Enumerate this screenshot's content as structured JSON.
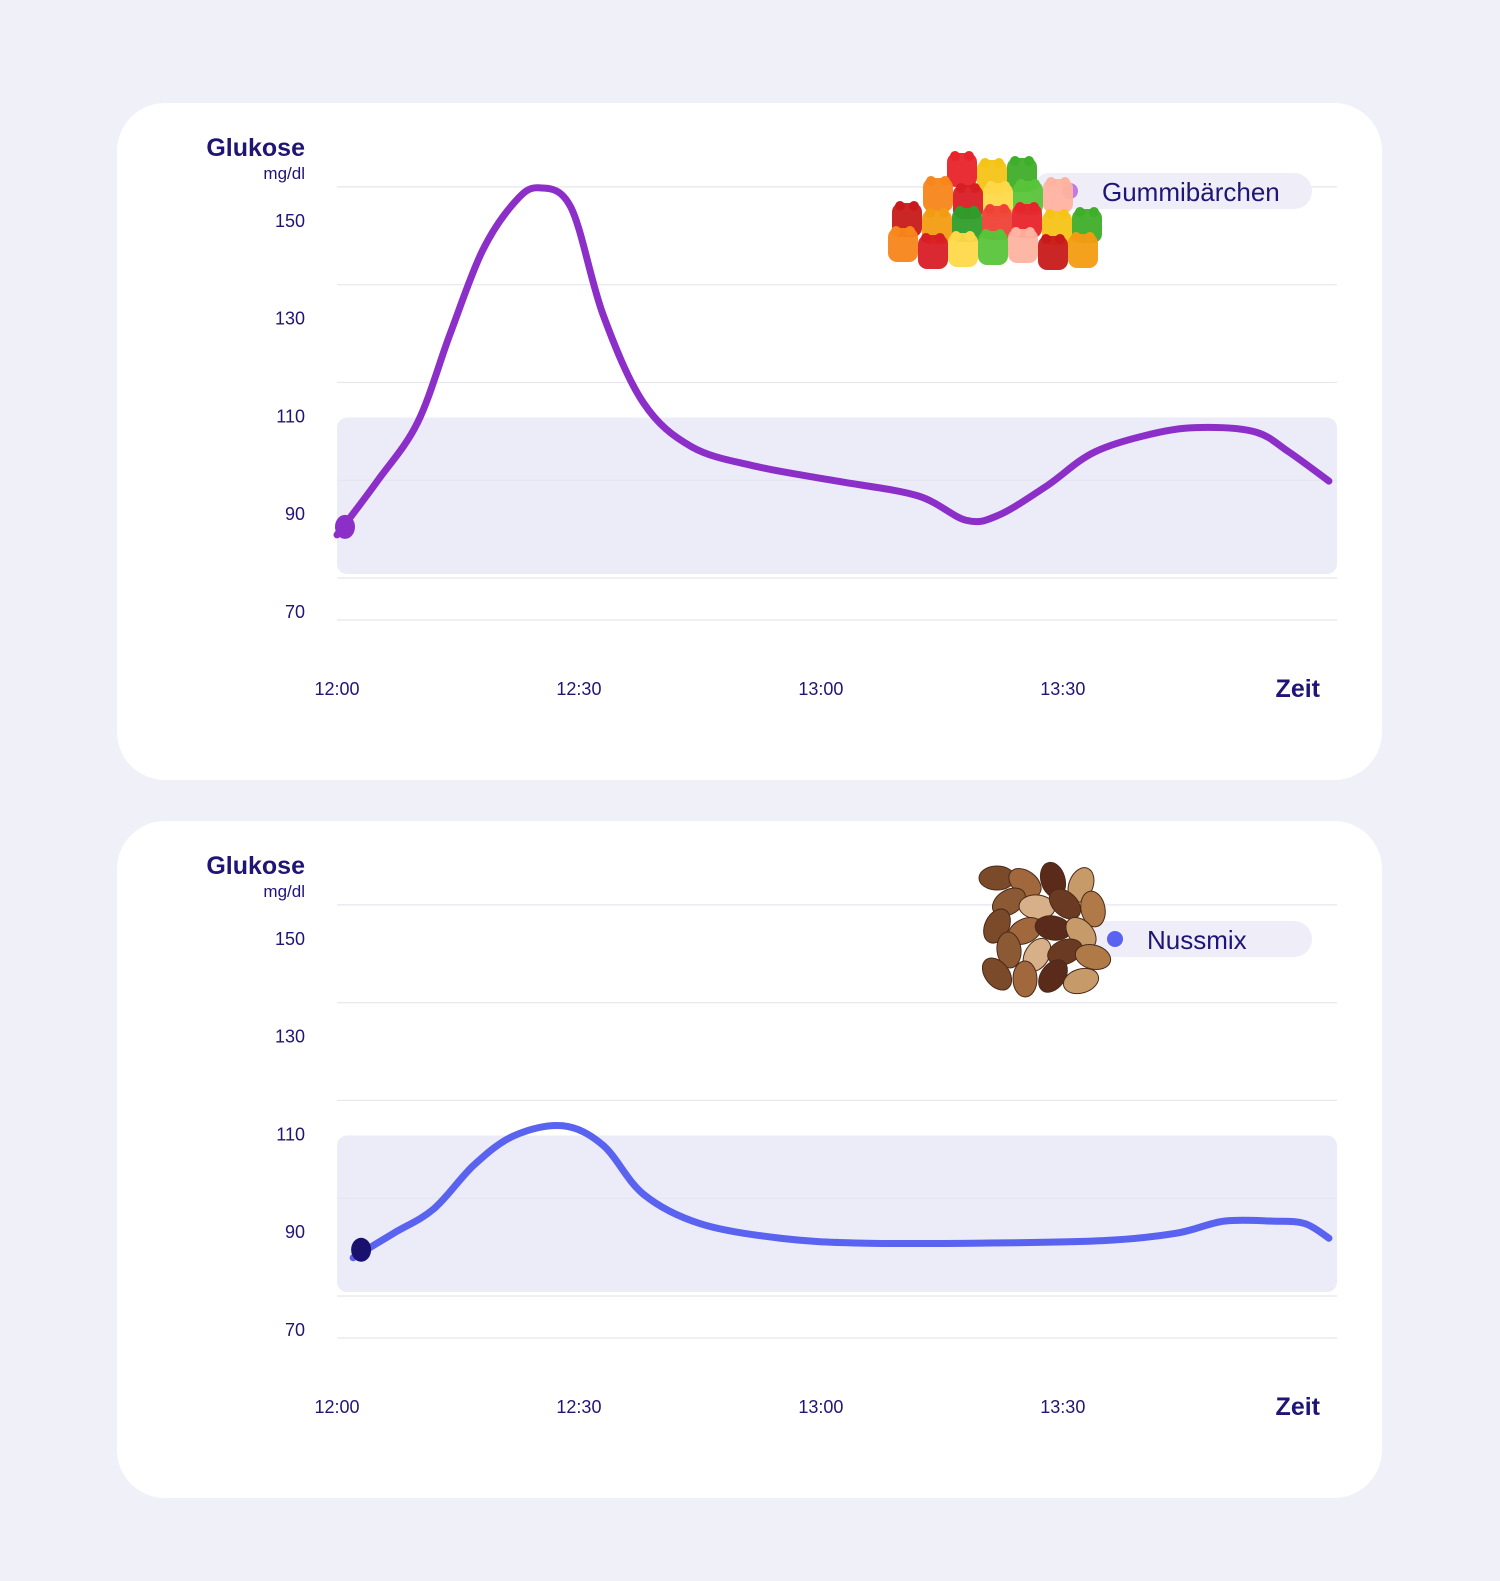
{
  "chart_data": [
    {
      "type": "line",
      "ylabel": "Glukose",
      "yunit": "mg/dl",
      "xlabel": "Zeit",
      "yticks": [
        150,
        130,
        110,
        90,
        70
      ],
      "ylim": [
        70,
        160
      ],
      "normal_range": [
        79,
        111
      ],
      "xticks": [
        "12:00",
        "12:30",
        "13:00",
        "13:30"
      ],
      "x_minutes": [
        0,
        30,
        60,
        90
      ],
      "xlim": [
        0,
        124
      ],
      "legend": "Gummibärchen",
      "legend_icon": "gummy-bears-icon",
      "color": "#8c2fc9",
      "marker_color": "#8c2fc9",
      "legend_dot_color": "#c07ae6",
      "series": [
        {
          "x": 0,
          "y": 87
        },
        {
          "x": 5,
          "y": 98
        },
        {
          "x": 10,
          "y": 110
        },
        {
          "x": 14,
          "y": 128
        },
        {
          "x": 18,
          "y": 145
        },
        {
          "x": 22,
          "y": 155
        },
        {
          "x": 25,
          "y": 158
        },
        {
          "x": 29,
          "y": 154
        },
        {
          "x": 33,
          "y": 132
        },
        {
          "x": 38,
          "y": 114
        },
        {
          "x": 44,
          "y": 105
        },
        {
          "x": 52,
          "y": 101
        },
        {
          "x": 62,
          "y": 98
        },
        {
          "x": 72,
          "y": 95
        },
        {
          "x": 78,
          "y": 90
        },
        {
          "x": 82,
          "y": 91
        },
        {
          "x": 88,
          "y": 97
        },
        {
          "x": 94,
          "y": 104
        },
        {
          "x": 102,
          "y": 108
        },
        {
          "x": 108,
          "y": 109
        },
        {
          "x": 114,
          "y": 108
        },
        {
          "x": 118,
          "y": 104
        },
        {
          "x": 123,
          "y": 98
        }
      ]
    },
    {
      "type": "line",
      "ylabel": "Glukose",
      "yunit": "mg/dl",
      "xlabel": "Zeit",
      "yticks": [
        150,
        130,
        110,
        90,
        70
      ],
      "ylim": [
        70,
        160
      ],
      "normal_range": [
        79,
        111
      ],
      "xticks": [
        "12:00",
        "12:30",
        "13:00",
        "13:30"
      ],
      "x_minutes": [
        0,
        30,
        60,
        90
      ],
      "xlim": [
        0,
        124
      ],
      "legend": "Nussmix",
      "legend_icon": "nut-mix-icon",
      "color": "#5a62f0",
      "marker_color": "#1a116e",
      "legend_dot_color": "#5a62f0",
      "series": [
        {
          "x": 2,
          "y": 86
        },
        {
          "x": 7,
          "y": 91
        },
        {
          "x": 12,
          "y": 96
        },
        {
          "x": 17,
          "y": 105
        },
        {
          "x": 22,
          "y": 111
        },
        {
          "x": 28,
          "y": 113
        },
        {
          "x": 33,
          "y": 109
        },
        {
          "x": 38,
          "y": 99
        },
        {
          "x": 45,
          "y": 93
        },
        {
          "x": 55,
          "y": 90
        },
        {
          "x": 65,
          "y": 89
        },
        {
          "x": 80,
          "y": 89
        },
        {
          "x": 95,
          "y": 89.5
        },
        {
          "x": 104,
          "y": 91
        },
        {
          "x": 110,
          "y": 93.5
        },
        {
          "x": 116,
          "y": 93.5
        },
        {
          "x": 120,
          "y": 93
        },
        {
          "x": 123,
          "y": 90
        }
      ]
    }
  ]
}
